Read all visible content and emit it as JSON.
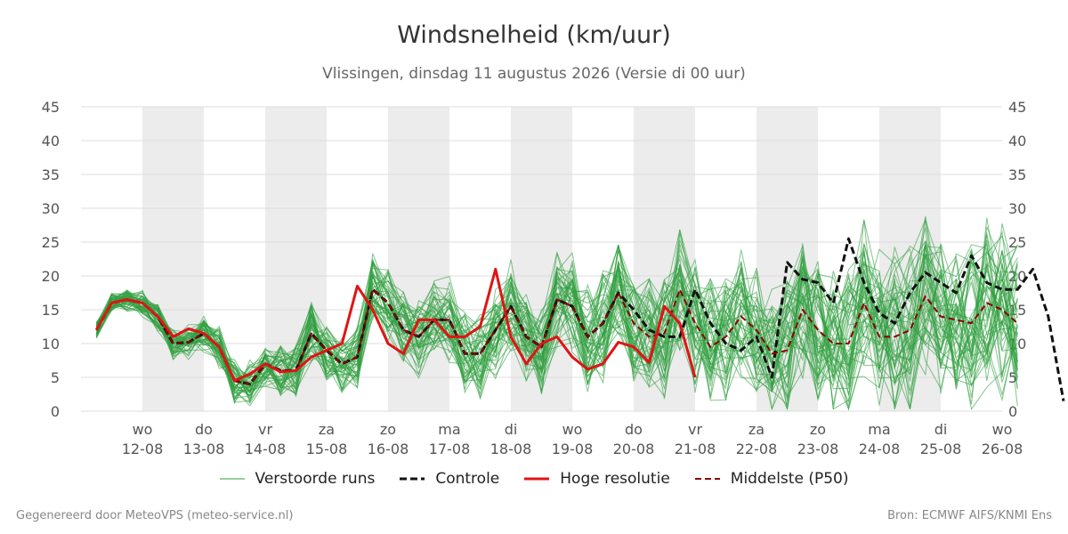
{
  "colors": {
    "ensemble": "#2e9e3e",
    "control": "#111111",
    "high_res": "#e01414",
    "median": "#8b0000",
    "weekend_band": "#ececec",
    "grid": "#dddddd"
  },
  "legend": {
    "ensemble": "Verstoorde runs",
    "control": "Controle",
    "high_res": "Hoge resolutie",
    "median": "Middelste (P50)"
  },
  "footer": {
    "left": "Gegenereerd door MeteoVPS (meteo-service.nl)",
    "right": "Bron: ECMWF AIFS/KNMI Ens"
  },
  "chart_data": {
    "type": "line",
    "title": "Windsnelheid (km/uur)",
    "subtitle": "Vlissingen, dinsdag 11 augustus 2026 (Versie di 00 uur)",
    "xlabel": "",
    "ylabel": "",
    "ylim": [
      0,
      45
    ],
    "yticks": [
      0,
      5,
      10,
      15,
      20,
      25,
      30,
      35,
      40,
      45
    ],
    "grid": true,
    "legend_position": "bottom",
    "x_ticks": [
      {
        "day": "wo",
        "date": "12-08"
      },
      {
        "day": "do",
        "date": "13-08"
      },
      {
        "day": "vr",
        "date": "14-08"
      },
      {
        "day": "za",
        "date": "15-08"
      },
      {
        "day": "zo",
        "date": "16-08"
      },
      {
        "day": "ma",
        "date": "17-08"
      },
      {
        "day": "di",
        "date": "18-08"
      },
      {
        "day": "wo",
        "date": "19-08"
      },
      {
        "day": "do",
        "date": "20-08"
      },
      {
        "day": "vr",
        "date": "21-08"
      },
      {
        "day": "za",
        "date": "22-08"
      },
      {
        "day": "zo",
        "date": "23-08"
      },
      {
        "day": "ma",
        "date": "24-08"
      },
      {
        "day": "di",
        "date": "25-08"
      },
      {
        "day": "wo",
        "date": "26-08"
      }
    ],
    "x_start": "11-08 06:00",
    "x_step_hours": 6,
    "shaded_days": [
      "12-08",
      "14-08",
      "16-08",
      "18-08",
      "20-08",
      "22-08",
      "24-08"
    ],
    "series": [
      {
        "name": "Controle",
        "values": [
          12,
          16,
          16.5,
          16,
          14,
          10,
          10.2,
          11.5,
          9.5,
          4.5,
          4,
          7,
          6,
          6,
          11.5,
          9,
          7,
          8,
          18,
          16,
          12,
          11,
          13.5,
          13.5,
          8.5,
          8.5,
          12,
          15.5,
          11,
          9.5,
          16.5,
          15.5,
          11,
          13,
          17.5,
          15,
          12,
          11,
          11,
          18,
          13,
          10,
          9,
          11,
          5,
          22,
          19.5,
          19,
          16,
          25.5,
          19,
          14.5,
          13,
          17.5,
          20.5,
          19,
          17.5,
          23,
          19,
          18,
          18,
          21,
          14,
          1.5
        ]
      },
      {
        "name": "Hoge resolutie",
        "values": [
          12,
          16,
          16.5,
          16,
          14,
          11,
          12.2,
          11.5,
          9.5,
          4.5,
          5.5,
          7,
          5.8,
          6,
          8,
          9,
          10,
          18.5,
          15,
          10,
          8.5,
          13.5,
          13.5,
          11,
          11,
          12.5,
          21,
          11,
          7,
          10,
          11,
          8,
          6.2,
          7,
          10.2,
          9.5,
          7.2,
          15.5,
          13,
          5
        ]
      },
      {
        "name": "Middelste (P50)",
        "values": [
          12,
          16,
          16.5,
          16,
          14,
          10,
          10.2,
          11.5,
          9.5,
          4.5,
          4,
          7,
          6,
          6,
          11.5,
          9,
          7,
          8,
          18,
          16,
          12,
          11,
          13.5,
          13.5,
          8.5,
          8.5,
          12,
          15.5,
          11,
          9.5,
          16.5,
          15.5,
          11,
          13,
          17.5,
          13,
          11,
          11.5,
          18,
          13,
          9.5,
          11,
          14,
          12,
          8.5,
          9,
          15,
          12,
          10,
          10,
          16,
          11,
          11,
          12,
          17,
          14,
          13.5,
          13,
          16,
          15,
          13
        ]
      }
    ]
  }
}
